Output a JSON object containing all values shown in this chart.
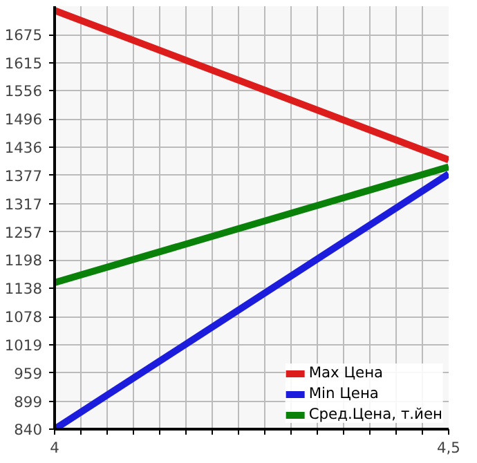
{
  "chart_data": {
    "type": "line",
    "x": [
      4,
      4.5
    ],
    "series": [
      {
        "name": "Max Цена",
        "color": "#dd1c1c",
        "values": [
          1726,
          1410
        ]
      },
      {
        "name": "Min Цена",
        "color": "#1c1cdd",
        "values": [
          840,
          1380
        ]
      },
      {
        "name": "Сред.Цена, т.йен",
        "color": "#0a820a",
        "values": [
          1150,
          1395
        ]
      }
    ],
    "xlim": [
      4,
      4.5
    ],
    "xticks": [
      4,
      {
        "value": 4.0333,
        "label": null
      },
      {
        "value": 4.0667,
        "label": null
      },
      {
        "value": 4.1,
        "label": null
      },
      {
        "value": 4.1333,
        "label": null
      },
      {
        "value": 4.1667,
        "label": null
      },
      {
        "value": 4.2,
        "label": null
      },
      {
        "value": 4.2333,
        "label": null
      },
      {
        "value": 4.2667,
        "label": null
      },
      {
        "value": 4.3,
        "label": null
      },
      {
        "value": 4.3333,
        "label": null
      },
      {
        "value": 4.3667,
        "label": null
      },
      {
        "value": 4.4,
        "label": null
      },
      {
        "value": 4.4333,
        "label": null
      },
      {
        "value": 4.4667,
        "label": null
      },
      {
        "value": 4.5,
        "label": "4,5"
      }
    ],
    "ylim": [
      840,
      1735
    ],
    "yticks": [
      840,
      899,
      959,
      1019,
      1078,
      1138,
      1198,
      1257,
      1317,
      1377,
      1436,
      1496,
      1556,
      1615,
      1675
    ],
    "grid": true,
    "legend": "bottom right",
    "marker": "none",
    "line_style": "solid"
  }
}
